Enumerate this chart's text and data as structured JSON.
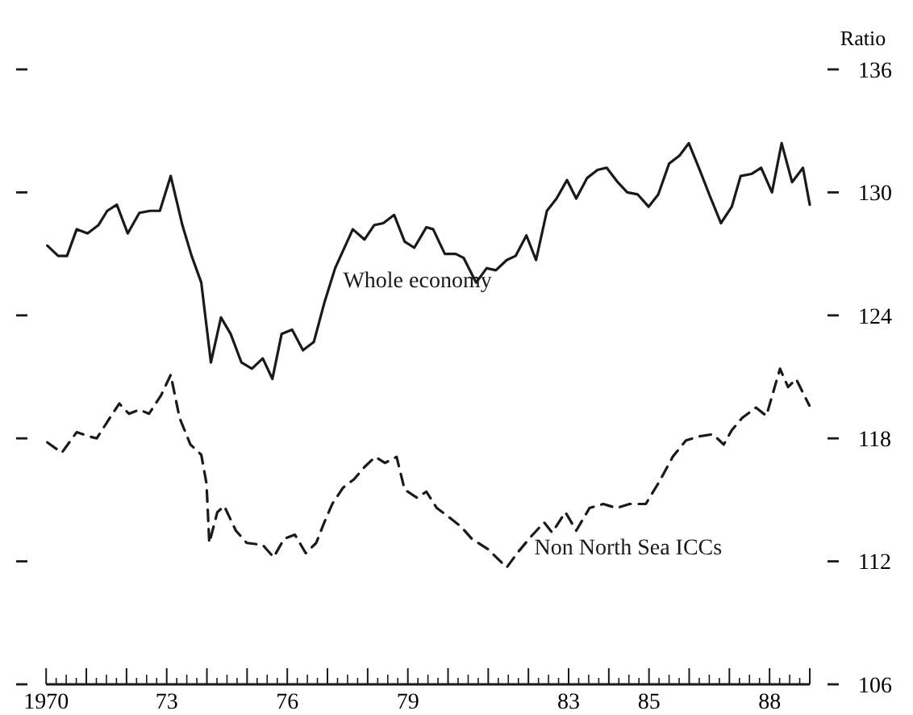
{
  "chart_data": {
    "type": "line",
    "ylabel": "Ratio",
    "xlim": [
      1970,
      1989
    ],
    "ylim": [
      106,
      136
    ],
    "yticks": [
      106,
      112,
      118,
      124,
      130,
      136
    ],
    "xticks": [
      1970,
      {
        "value": 1973,
        "label": "73"
      },
      {
        "value": 1976,
        "label": "76"
      },
      {
        "value": 1979,
        "label": "79"
      },
      {
        "value": 1983,
        "label": "83"
      },
      {
        "value": 1985,
        "label": "85"
      },
      {
        "value": 1988,
        "label": "88"
      }
    ],
    "grid": false,
    "marker": "none",
    "series": [
      {
        "name": "Whole economy",
        "color": "#1a1a1a",
        "line_style": "solid",
        "x": [
          1970.03,
          1970.3,
          1970.52,
          1970.76,
          1971.03,
          1971.3,
          1971.52,
          1971.76,
          1972.03,
          1972.32,
          1972.59,
          1972.83,
          1973.1,
          1973.39,
          1973.62,
          1973.86,
          1974.1,
          1974.35,
          1974.59,
          1974.86,
          1975.12,
          1975.39,
          1975.63,
          1975.86,
          1976.12,
          1976.39,
          1976.66,
          1976.92,
          1977.19,
          1977.63,
          1977.92,
          1978.16,
          1978.39,
          1978.66,
          1978.92,
          1979.16,
          1979.46,
          1979.63,
          1979.92,
          1980.19,
          1980.39,
          1980.7,
          1980.96,
          1981.19,
          1981.46,
          1981.68,
          1981.95,
          1982.19,
          1982.46,
          1982.7,
          1982.96,
          1983.19,
          1983.46,
          1983.72,
          1983.95,
          1984.22,
          1984.46,
          1984.72,
          1984.99,
          1985.23,
          1985.5,
          1985.76,
          1985.99,
          1986.26,
          1986.52,
          1986.79,
          1987.06,
          1987.28,
          1987.55,
          1987.79,
          1988.06,
          1988.3,
          1988.56,
          1988.83,
          1989.0
        ],
        "values": [
          127.4,
          126.9,
          126.9,
          128.2,
          128.0,
          128.4,
          129.1,
          129.4,
          128.0,
          129.0,
          129.1,
          129.1,
          130.8,
          128.4,
          126.9,
          125.6,
          121.7,
          123.9,
          123.1,
          121.7,
          121.4,
          121.9,
          120.9,
          123.1,
          123.3,
          122.3,
          122.7,
          124.6,
          126.3,
          128.2,
          127.7,
          128.4,
          128.5,
          128.9,
          127.6,
          127.3,
          128.3,
          128.2,
          127.0,
          127.0,
          126.8,
          125.6,
          126.3,
          126.2,
          126.7,
          126.9,
          127.9,
          126.7,
          129.1,
          129.7,
          130.6,
          129.7,
          130.7,
          131.1,
          131.2,
          130.5,
          130.0,
          129.9,
          129.3,
          129.9,
          131.4,
          131.8,
          132.4,
          131.1,
          129.8,
          128.5,
          129.3,
          130.8,
          130.9,
          131.2,
          130.0,
          132.4,
          130.5,
          131.2,
          129.4
        ]
      },
      {
        "name": "Non North Sea ICCs",
        "color": "#1a1a1a",
        "line_style": "dashed",
        "x": [
          1970.03,
          1970.39,
          1970.76,
          1971.06,
          1971.26,
          1971.52,
          1971.82,
          1972.06,
          1972.32,
          1972.56,
          1972.86,
          1973.1,
          1973.32,
          1973.59,
          1973.86,
          1973.99,
          1974.06,
          1974.26,
          1974.43,
          1974.72,
          1974.99,
          1975.39,
          1975.66,
          1975.92,
          1976.19,
          1976.46,
          1976.72,
          1976.92,
          1977.12,
          1977.39,
          1977.66,
          1977.92,
          1978.19,
          1978.43,
          1978.72,
          1978.92,
          1979.23,
          1979.46,
          1979.72,
          1980.06,
          1980.32,
          1980.59,
          1980.99,
          1981.46,
          1981.72,
          1982.06,
          1982.39,
          1982.59,
          1982.92,
          1983.19,
          1983.52,
          1983.86,
          1984.19,
          1984.52,
          1984.92,
          1985.26,
          1985.59,
          1985.92,
          1986.26,
          1986.59,
          1986.86,
          1987.06,
          1987.32,
          1987.66,
          1987.92,
          1988.26,
          1988.46,
          1988.66,
          1988.99
        ],
        "values": [
          117.8,
          117.3,
          118.3,
          118.1,
          118.0,
          118.8,
          119.7,
          119.2,
          119.4,
          119.2,
          120.1,
          121.1,
          119.0,
          117.7,
          117.2,
          115.8,
          112.9,
          114.4,
          114.7,
          113.5,
          112.9,
          112.8,
          112.2,
          113.1,
          113.3,
          112.4,
          112.9,
          113.9,
          114.8,
          115.6,
          116.0,
          116.6,
          117.1,
          116.8,
          117.1,
          115.5,
          115.1,
          115.4,
          114.6,
          114.1,
          113.7,
          113.1,
          112.6,
          111.7,
          112.4,
          113.2,
          113.9,
          113.4,
          114.4,
          113.5,
          114.6,
          114.8,
          114.6,
          114.8,
          114.8,
          115.9,
          117.1,
          117.9,
          118.1,
          118.2,
          117.7,
          118.4,
          119.0,
          119.5,
          119.1,
          121.4,
          120.5,
          120.9,
          119.6
        ]
      }
    ]
  }
}
